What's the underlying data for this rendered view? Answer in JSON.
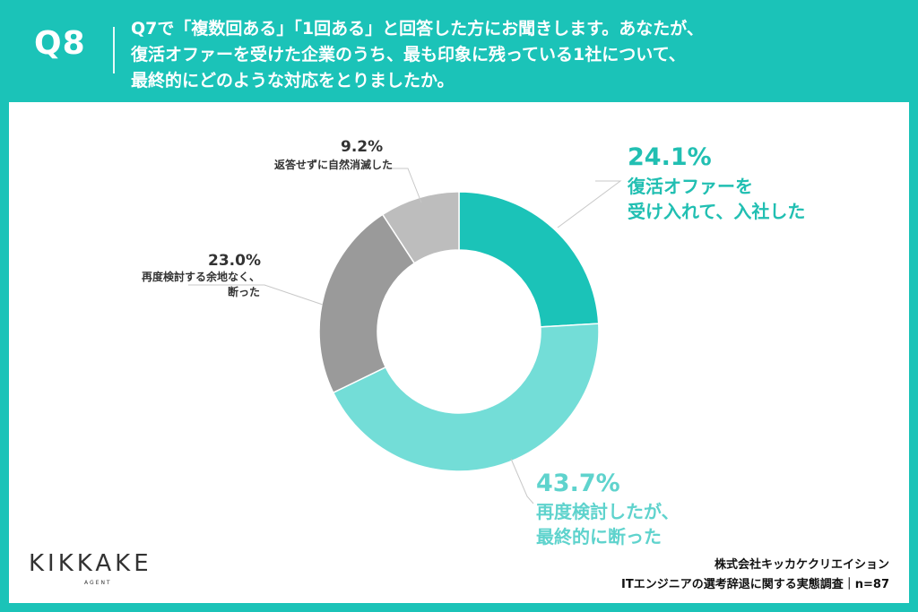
{
  "header": {
    "q_label": "Q8",
    "question": "Q7で「複数回ある」「1回ある」と回答した方にお聞きします。あなたが、\n復活オファーを受けた企業のうち、最も印象に残っている1社について、\n最終的にどのような対応をとりましたか。"
  },
  "chart_data": {
    "type": "pie",
    "style": "donut",
    "slices": [
      {
        "label": "復活オファーを\n受け入れて、入社した",
        "value": 24.1,
        "value_text": "24.1%",
        "color": "#1BC3B8"
      },
      {
        "label": "再度検討したが、\n最終的に断った",
        "value": 43.7,
        "value_text": "43.7%",
        "color": "#73DDD7"
      },
      {
        "label": "再度検討する余地なく、\n断った",
        "value": 23.0,
        "value_text": "23.0%",
        "color": "#9A9A9A"
      },
      {
        "label": "返答せずに自然消滅した",
        "value": 9.2,
        "value_text": "9.2%",
        "color": "#BDBDBD"
      }
    ]
  },
  "footer": {
    "company": "株式会社キッカケクリエイション",
    "survey": "ITエンジニアの選考辞退に関する実態調査｜n=87"
  },
  "logo": {
    "name": "KIKKAKE",
    "sub": "AGENT"
  }
}
